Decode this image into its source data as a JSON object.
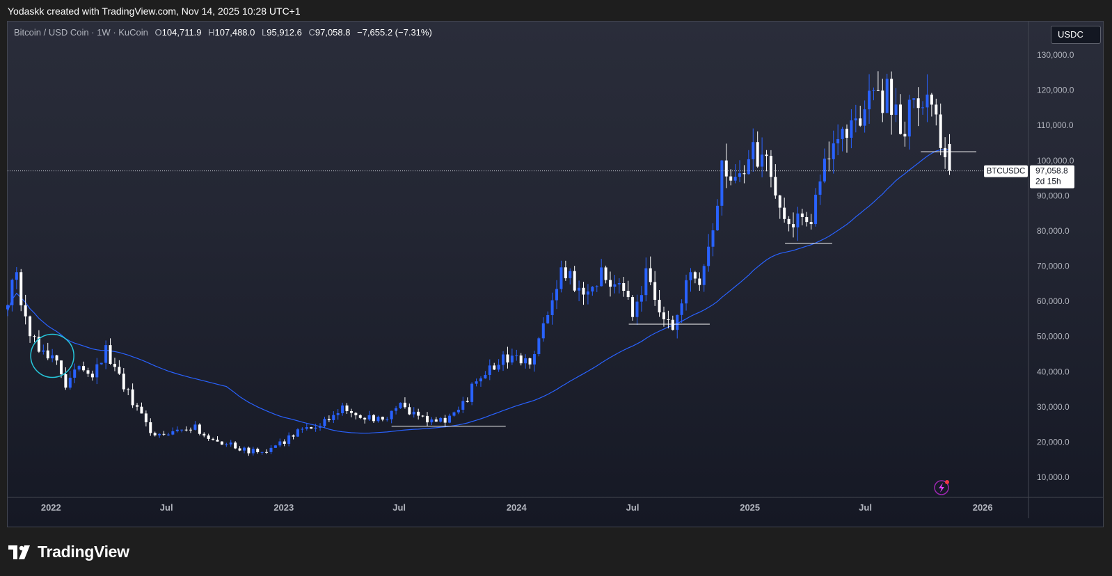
{
  "header": {
    "created_text": "Yodaskk created with TradingView.com, Nov 14, 2025 10:28 UTC+1"
  },
  "legend": {
    "symbol": "Bitcoin / USD Coin · 1W · KuCoin",
    "o_label": "O",
    "o_value": "104,711.9",
    "h_label": "H",
    "h_value": "107,488.0",
    "l_label": "L",
    "l_value": "95,912.6",
    "c_label": "C",
    "c_value": "97,058.8",
    "change": "−7,655.2 (−7.31%)"
  },
  "currency_button": "USDC",
  "price_label": {
    "ticker": "BTCUSDC",
    "price": "97,058.8",
    "countdown": "2d 15h"
  },
  "brand": {
    "name": "TradingView"
  },
  "colors": {
    "up": "#2962ff",
    "down": "#ffffff",
    "ma": "#2962ff",
    "annotation_circle": "#26c6da",
    "grid_text": "#b2b5be"
  },
  "icons": {
    "alert": "lightning-alert-icon",
    "logo": "tradingview-logo-icon"
  },
  "chart_data": {
    "type": "candlestick",
    "timeframe": "1W",
    "ylim": [
      0,
      135000
    ],
    "y_ticks": [
      "10,000.0",
      "20,000.0",
      "30,000.0",
      "40,000.0",
      "50,000.0",
      "60,000.0",
      "70,000.0",
      "80,000.0",
      "90,000.0",
      "100,000.0",
      "110,000.0",
      "120,000.0",
      "130,000.0"
    ],
    "x_ticks": [
      "2022",
      "Jul",
      "2023",
      "Jul",
      "2024",
      "Jul",
      "2025",
      "Jul",
      "2026"
    ],
    "x_start": "2021-10-25",
    "x_end": "2026-02-20",
    "series": [
      {
        "name": "Bitcoin / USD Coin",
        "points": [
          [
            "2021-10-25",
            61000
          ],
          [
            "2021-11-08",
            66000
          ],
          [
            "2021-11-29",
            49000
          ],
          [
            "2021-12-13",
            47000
          ],
          [
            "2022-01-10",
            42000
          ],
          [
            "2022-01-24",
            37000
          ],
          [
            "2022-02-07",
            42000
          ],
          [
            "2022-02-21",
            39000
          ],
          [
            "2022-03-07",
            39000
          ],
          [
            "2022-03-28",
            46000
          ],
          [
            "2022-04-11",
            40000
          ],
          [
            "2022-05-02",
            34000
          ],
          [
            "2022-05-16",
            29000
          ],
          [
            "2022-06-13",
            21000
          ],
          [
            "2022-07-18",
            23000
          ],
          [
            "2022-08-15",
            24000
          ],
          [
            "2022-09-05",
            21000
          ],
          [
            "2022-10-03",
            19500
          ],
          [
            "2022-11-07",
            17500
          ],
          [
            "2022-12-05",
            17000
          ],
          [
            "2023-01-09",
            21000
          ],
          [
            "2023-01-23",
            23500
          ],
          [
            "2023-02-20",
            23500
          ],
          [
            "2023-03-13",
            27000
          ],
          [
            "2023-04-10",
            30000
          ],
          [
            "2023-05-08",
            27000
          ],
          [
            "2023-06-12",
            26000
          ],
          [
            "2023-06-26",
            30500
          ],
          [
            "2023-08-14",
            26000
          ],
          [
            "2023-09-11",
            26500
          ],
          [
            "2023-10-02",
            28000
          ],
          [
            "2023-10-23",
            35000
          ],
          [
            "2023-12-04",
            43000
          ],
          [
            "2024-01-01",
            45000
          ],
          [
            "2024-01-22",
            42000
          ],
          [
            "2024-02-12",
            52000
          ],
          [
            "2024-02-26",
            62000
          ],
          [
            "2024-03-11",
            69000
          ],
          [
            "2024-04-15",
            64000
          ],
          [
            "2024-05-20",
            68000
          ],
          [
            "2024-07-01",
            57000
          ],
          [
            "2024-07-22",
            68000
          ],
          [
            "2024-08-05",
            58000
          ],
          [
            "2024-09-02",
            54000
          ],
          [
            "2024-09-23",
            65000
          ],
          [
            "2024-10-21",
            68000
          ],
          [
            "2024-11-04",
            79000
          ],
          [
            "2024-11-18",
            96000
          ],
          [
            "2024-12-16",
            97000
          ],
          [
            "2025-01-20",
            104000
          ],
          [
            "2025-02-24",
            84000
          ],
          [
            "2025-03-10",
            82000
          ],
          [
            "2025-04-07",
            85000
          ],
          [
            "2025-04-21",
            94000
          ],
          [
            "2025-05-19",
            108000
          ],
          [
            "2025-06-23",
            107000
          ],
          [
            "2025-07-14",
            119000
          ],
          [
            "2025-08-11",
            118000
          ],
          [
            "2025-08-25",
            110000
          ],
          [
            "2025-09-15",
            115000
          ],
          [
            "2025-10-06",
            121000
          ],
          [
            "2025-10-20",
            111000
          ],
          [
            "2025-11-10",
            97058.8
          ]
        ]
      }
    ],
    "ma_label": "MA",
    "annotations": [
      {
        "type": "horizontal_line",
        "value": 24500
      },
      {
        "type": "horizontal_line",
        "value": 53500
      },
      {
        "type": "horizontal_line",
        "value": 76500
      },
      {
        "type": "horizontal_line",
        "value": 102500
      },
      {
        "type": "circle",
        "date": "2022-01-03",
        "value": 44500
      }
    ],
    "last_price": 97058.8,
    "grid": false,
    "seed": 20251114
  }
}
